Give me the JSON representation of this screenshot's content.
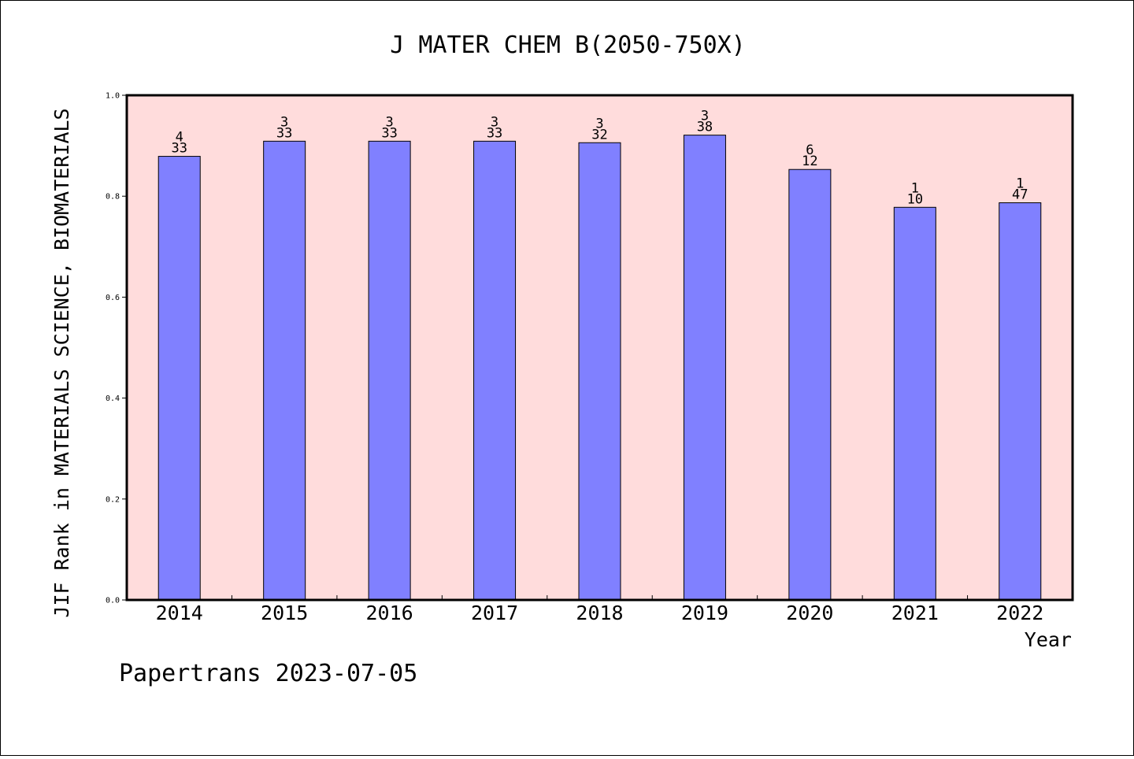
{
  "chart_data": {
    "type": "bar",
    "title": "J MATER CHEM B(2050-750X)",
    "xlabel": "Year",
    "ylabel": "JIF Rank in MATERIALS SCIENCE, BIOMATERIALS",
    "ylim": [
      0,
      1.0
    ],
    "yticks": [
      "0.0",
      "0.2",
      "0.4",
      "0.6",
      "0.8",
      "1.0"
    ],
    "categories": [
      "2014",
      "2015",
      "2016",
      "2017",
      "2018",
      "2019",
      "2020",
      "2021",
      "2022"
    ],
    "values": [
      0.879,
      0.909,
      0.909,
      0.909,
      0.906,
      0.921,
      0.853,
      0.778,
      0.787
    ],
    "labels_top": [
      "4",
      "3",
      "3",
      "3",
      "3",
      "3",
      "6",
      "1",
      "1"
    ],
    "labels_bottom": [
      "33",
      "33",
      "33",
      "33",
      "32",
      "38",
      "12",
      "10",
      "47"
    ],
    "grid": false,
    "colors": {
      "plot_background": "#ffdcdc",
      "bar": "#8080ff"
    }
  },
  "footer": "Papertrans 2023-07-05"
}
